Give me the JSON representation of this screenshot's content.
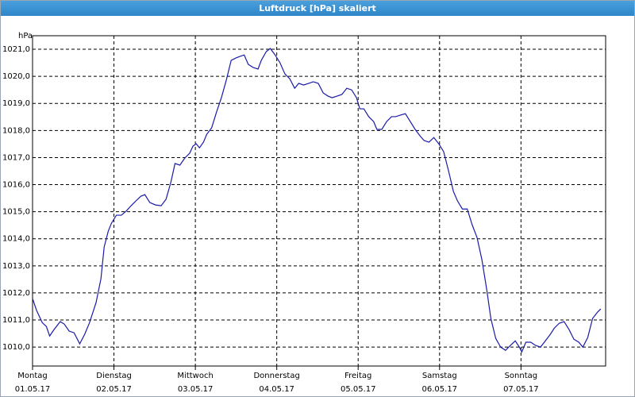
{
  "chart_data": {
    "type": "line",
    "title": "Luftdruck [hPa] skaliert",
    "ylabel": "hPa",
    "color": "#1a1aa8",
    "grid": true,
    "xlim": [
      0,
      7.04
    ],
    "ylim": [
      1009.3,
      1021.5
    ],
    "xticks": [
      {
        "value": 0,
        "label": [
          "Montag",
          "01.05.17"
        ]
      },
      {
        "value": 1,
        "label": [
          "Dienstag",
          "02.05.17"
        ]
      },
      {
        "value": 2,
        "label": [
          "Mittwoch",
          "03.05.17"
        ]
      },
      {
        "value": 3,
        "label": [
          "Donnerstag",
          "04.05.17"
        ]
      },
      {
        "value": 4,
        "label": [
          "Freitag",
          "05.05.17"
        ]
      },
      {
        "value": 5,
        "label": [
          "Samstag",
          "06.05.17"
        ]
      },
      {
        "value": 6,
        "label": [
          "Sonntag",
          "07.05.17"
        ]
      }
    ],
    "yticks": [
      {
        "value": 1010,
        "label": "1010,0"
      },
      {
        "value": 1011,
        "label": "1011,0"
      },
      {
        "value": 1012,
        "label": "1012,0"
      },
      {
        "value": 1013,
        "label": "1013,0"
      },
      {
        "value": 1014,
        "label": "1014,0"
      },
      {
        "value": 1015,
        "label": "1015,0"
      },
      {
        "value": 1016,
        "label": "1016,0"
      },
      {
        "value": 1017,
        "label": "1017,0"
      },
      {
        "value": 1018,
        "label": "1018,0"
      },
      {
        "value": 1019,
        "label": "1019,0"
      },
      {
        "value": 1020,
        "label": "1020,0"
      },
      {
        "value": 1021,
        "label": "1021,0"
      }
    ],
    "x": [
      0,
      0.05,
      0.12,
      0.17,
      0.21,
      0.27,
      0.34,
      0.39,
      0.45,
      0.51,
      0.58,
      0.64,
      0.7,
      0.78,
      0.84,
      0.88,
      0.93,
      0.97,
      1.03,
      1.09,
      1.15,
      1.21,
      1.27,
      1.33,
      1.38,
      1.44,
      1.51,
      1.58,
      1.64,
      1.7,
      1.75,
      1.81,
      1.87,
      1.93,
      1.97,
      2.01,
      2.05,
      2.1,
      2.14,
      2.2,
      2.26,
      2.32,
      2.38,
      2.44,
      2.5,
      2.55,
      2.6,
      2.65,
      2.71,
      2.77,
      2.81,
      2.87,
      2.92,
      2.98,
      3.04,
      3.1,
      3.16,
      3.22,
      3.27,
      3.33,
      3.39,
      3.45,
      3.51,
      3.57,
      3.63,
      3.68,
      3.74,
      3.8,
      3.86,
      3.92,
      3.98,
      4.02,
      4.07,
      4.13,
      4.19,
      4.23,
      4.29,
      4.35,
      4.41,
      4.46,
      4.52,
      4.58,
      4.64,
      4.7,
      4.76,
      4.81,
      4.87,
      4.93,
      4.99,
      5.05,
      5.11,
      5.17,
      5.22,
      5.28,
      5.34,
      5.4,
      5.46,
      5.52,
      5.58,
      5.63,
      5.69,
      5.75,
      5.81,
      5.87,
      5.93,
      5.98,
      6.01,
      6.06,
      6.12,
      6.18,
      6.24,
      6.3,
      6.36,
      6.41,
      6.47,
      6.53,
      6.59,
      6.65,
      6.71,
      6.76,
      6.82,
      6.88,
      6.94,
      6.98
    ],
    "values": [
      1011.79,
      1011.35,
      1010.9,
      1010.76,
      1010.41,
      1010.67,
      1010.94,
      1010.85,
      1010.59,
      1010.53,
      1010.12,
      1010.47,
      1010.9,
      1011.64,
      1012.52,
      1013.7,
      1014.28,
      1014.58,
      1014.87,
      1014.87,
      1015.02,
      1015.22,
      1015.4,
      1015.57,
      1015.63,
      1015.34,
      1015.25,
      1015.22,
      1015.46,
      1016.1,
      1016.78,
      1016.72,
      1016.98,
      1017.16,
      1017.42,
      1017.51,
      1017.36,
      1017.57,
      1017.86,
      1018.1,
      1018.68,
      1019.21,
      1019.86,
      1020.59,
      1020.68,
      1020.74,
      1020.79,
      1020.44,
      1020.33,
      1020.27,
      1020.59,
      1020.91,
      1021.03,
      1020.79,
      1020.5,
      1020.09,
      1019.91,
      1019.56,
      1019.74,
      1019.68,
      1019.74,
      1019.8,
      1019.74,
      1019.39,
      1019.27,
      1019.21,
      1019.27,
      1019.33,
      1019.56,
      1019.5,
      1019.21,
      1018.8,
      1018.8,
      1018.51,
      1018.33,
      1018.04,
      1018.04,
      1018.33,
      1018.51,
      1018.51,
      1018.57,
      1018.62,
      1018.33,
      1018.04,
      1017.8,
      1017.63,
      1017.57,
      1017.74,
      1017.51,
      1017.22,
      1016.51,
      1015.75,
      1015.4,
      1015.1,
      1015.1,
      1014.52,
      1014.05,
      1013.23,
      1012.11,
      1011.06,
      1010.32,
      1010.0,
      1009.88,
      1010.06,
      1010.23,
      1010.0,
      1009.82,
      1010.18,
      1010.18,
      1010.06,
      1010.0,
      1010.23,
      1010.47,
      1010.7,
      1010.88,
      1010.94,
      1010.65,
      1010.29,
      1010.18,
      1010.0,
      1010.35,
      1011.06,
      1011.29,
      1011.41
    ]
  }
}
